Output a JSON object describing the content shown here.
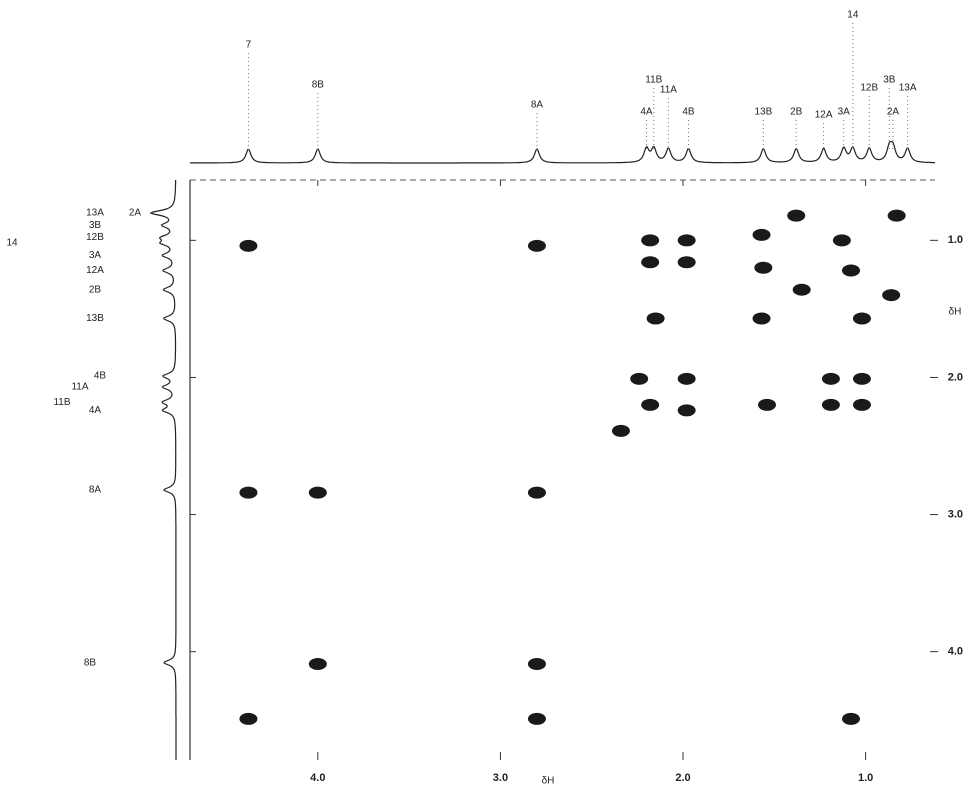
{
  "chart_data": {
    "type": "scatter",
    "xlabel": "δH",
    "ylabel": "δH",
    "xlim": [
      4.7,
      0.62
    ],
    "ylim": [
      0.56,
      4.79
    ],
    "xticks": [
      {
        "value": 4,
        "label": "4.0"
      },
      {
        "value": 3,
        "label": "3.0"
      },
      {
        "value": 2,
        "label": "2.0"
      },
      {
        "value": 1,
        "label": "1.0"
      }
    ],
    "yticks": [
      {
        "value": 1,
        "label": "1.0"
      },
      {
        "value": 2,
        "label": "2.0"
      },
      {
        "value": 3,
        "label": "3.0"
      },
      {
        "value": 4,
        "label": "4.0"
      }
    ],
    "color": "#1a1a1a",
    "x": [
      4.38,
      4.38,
      4.38,
      4.0,
      4.0,
      2.8,
      2.8,
      2.8,
      1.08,
      2.18,
      1.98,
      2.18,
      1.98,
      2.24,
      1.98,
      2.18,
      1.98,
      2.34,
      1.57,
      1.56,
      1.57,
      1.38,
      1.35,
      1.13,
      1.08,
      1.02,
      0.86,
      0.83,
      1.19,
      1.02,
      1.19,
      1.02,
      2.15,
      2.8,
      1.54
    ],
    "values": [
      1.04,
      2.84,
      4.49,
      2.84,
      4.09,
      2.84,
      4.09,
      4.49,
      4.49,
      1.0,
      1.0,
      1.16,
      1.16,
      2.01,
      2.01,
      2.2,
      2.24,
      2.39,
      0.96,
      1.2,
      1.57,
      0.82,
      1.36,
      1.0,
      1.22,
      1.57,
      1.4,
      0.82,
      2.01,
      2.01,
      2.2,
      2.2,
      1.57,
      1.04,
      2.2
    ],
    "top_annotations": [
      {
        "text": "7",
        "x": 4.38
      },
      {
        "text": "8B",
        "x": 4.0
      },
      {
        "text": "8A",
        "x": 2.8
      },
      {
        "text": "11B",
        "x": 2.16
      },
      {
        "text": "11A",
        "x": 2.08
      },
      {
        "text": "4A",
        "x": 2.2
      },
      {
        "text": "4B",
        "x": 1.97
      },
      {
        "text": "13B",
        "x": 1.56
      },
      {
        "text": "2B",
        "x": 1.38
      },
      {
        "text": "12A",
        "x": 1.23
      },
      {
        "text": "3A",
        "x": 1.12
      },
      {
        "text": "14",
        "x": 1.07
      },
      {
        "text": "12B",
        "x": 0.98
      },
      {
        "text": "3B",
        "x": 0.87
      },
      {
        "text": "13A",
        "x": 0.77
      },
      {
        "text": "2A",
        "x": 0.85
      }
    ],
    "left_annotations": [
      {
        "text": "13A",
        "y": 0.8
      },
      {
        "text": "2A",
        "y": 0.8
      },
      {
        "text": "3B",
        "y": 0.89
      },
      {
        "text": "12B",
        "y": 0.98
      },
      {
        "text": "14",
        "y": 1.02
      },
      {
        "text": "3A",
        "y": 1.11
      },
      {
        "text": "12A",
        "y": 1.22
      },
      {
        "text": "2B",
        "y": 1.36
      },
      {
        "text": "13B",
        "y": 1.57
      },
      {
        "text": "4B",
        "y": 1.99
      },
      {
        "text": "11A",
        "y": 2.07
      },
      {
        "text": "11B",
        "y": 2.18
      },
      {
        "text": "4A",
        "y": 2.24
      },
      {
        "text": "8A",
        "y": 2.82
      },
      {
        "text": "8B",
        "y": 4.08
      }
    ]
  }
}
